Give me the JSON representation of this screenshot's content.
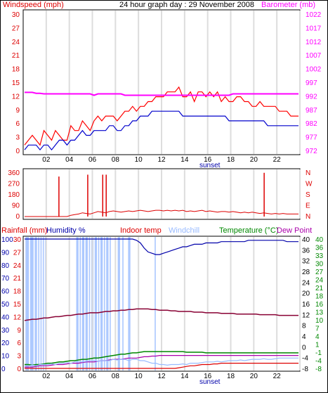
{
  "header": {
    "windspeed_label": "Windspeed (mph)",
    "title": "24 hour graph day : 29 November 2008",
    "barometer_label": "Barometer (mb)"
  },
  "middle_header": {
    "rainfall_label": "Rainfall (mm)",
    "humidity_label": "Humidity %",
    "indoor_label": "Indoor temp",
    "windchill_label": "Windchill",
    "temperature_label": "Temperature (°C)",
    "dewpoint_label": "Dew Point"
  },
  "sunset_label": "sunset",
  "colors": {
    "wind_max": "#ff0000",
    "wind_avg": "#0000cc",
    "barometer": "#ff00ff",
    "direction": "#dd0000",
    "humidity": "#0000aa",
    "indoor": "#880033",
    "windchill": "#99bbff",
    "temperature": "#008800",
    "dewpoint": "#aa00aa",
    "rain": "#dd0000",
    "day_band": "#dddddd"
  },
  "chart_data": [
    {
      "type": "line",
      "x_ticks": [
        "02",
        "04",
        "06",
        "08",
        "10",
        "12",
        "14",
        "16",
        "18",
        "20",
        "22",
        ""
      ],
      "left_ticks": [
        "30",
        "27",
        "24",
        "21",
        "18",
        "15",
        "12",
        "9",
        "6",
        "3",
        "0"
      ],
      "right_ticks": [
        "1022",
        "1017",
        "1012",
        "1007",
        "1002",
        "997",
        "992",
        "987",
        "982",
        "977",
        "972"
      ],
      "ylim": [
        0,
        30
      ],
      "y2lim": [
        972,
        1022
      ],
      "series": [
        {
          "name": "",
          "axis": "left",
          "values": [
            2,
            3,
            4,
            3,
            2,
            5,
            4,
            3,
            5,
            4,
            3,
            3,
            6,
            5,
            5,
            7,
            6,
            5,
            7,
            8,
            7,
            8,
            8,
            8,
            7,
            8,
            9,
            9,
            10,
            9,
            10,
            10,
            11,
            11,
            12,
            12,
            12,
            13,
            13,
            13,
            14,
            12,
            12,
            13,
            11,
            13,
            13,
            12,
            13,
            12,
            13,
            11,
            12,
            11,
            11,
            12,
            12,
            11,
            11,
            10,
            10,
            11,
            10,
            10,
            10,
            10,
            9,
            9,
            9,
            8,
            8,
            8
          ]
        },
        {
          "name": "",
          "axis": "left",
          "values": [
            1,
            2,
            2,
            2,
            1,
            2,
            2,
            1,
            2,
            3,
            3,
            2,
            3,
            3,
            4,
            5,
            4,
            4,
            5,
            5,
            5,
            5,
            6,
            6,
            5,
            5,
            6,
            6,
            7,
            7,
            8,
            8,
            8,
            9,
            9,
            9,
            9,
            9,
            9,
            9,
            9,
            8,
            8,
            8,
            8,
            8,
            8,
            8,
            8,
            8,
            8,
            8,
            8,
            7,
            7,
            7,
            7,
            7,
            7,
            7,
            7,
            7,
            7,
            6,
            6,
            6,
            6,
            6,
            6,
            6,
            6,
            6
          ]
        },
        {
          "name": "",
          "axis": "right",
          "values": [
            993.5,
            993.5,
            993.5,
            993.2,
            993.2,
            993,
            993,
            993,
            993,
            993,
            993,
            993,
            993,
            993,
            993,
            993,
            993,
            993,
            992.5,
            993,
            993,
            993,
            993,
            993,
            993,
            993,
            992.5,
            992.5,
            992.5,
            992.5,
            992.5,
            992.5,
            992.5,
            992.5,
            992.5,
            992.5,
            992.5,
            992.5,
            992.5,
            992.5,
            992.5,
            992.5,
            992.5,
            992.5,
            992.5,
            992.5,
            992.5,
            992.5,
            992.5,
            992.5,
            992.5,
            992.5,
            992.5,
            992.5,
            993,
            993,
            993,
            993,
            993,
            993,
            993,
            993,
            993,
            993,
            993,
            993,
            993,
            993,
            993,
            993,
            993,
            993
          ]
        }
      ]
    },
    {
      "type": "line",
      "left_ticks": [
        "360",
        "270",
        "180",
        "90",
        "0"
      ],
      "right_ticks": [
        "N",
        "W",
        "S",
        "E",
        "N"
      ],
      "ylim": [
        0,
        360
      ],
      "spikes": [
        {
          "x": 3.1,
          "value": 320
        },
        {
          "x": 5.6,
          "value": 335
        },
        {
          "x": 6.9,
          "value": 335
        },
        {
          "x": 7.2,
          "value": 335
        },
        {
          "x": 20.9,
          "value": 350
        }
      ],
      "series": [
        {
          "name": "",
          "values": [
            0,
            0,
            0,
            0,
            0,
            0,
            0,
            0,
            0,
            0,
            0,
            0,
            10,
            15,
            20,
            30,
            25,
            20,
            30,
            40,
            35,
            30,
            40,
            45,
            40,
            35,
            40,
            45,
            40,
            45,
            50,
            45,
            40,
            45,
            50,
            50,
            45,
            50,
            45,
            50,
            45,
            50,
            40,
            45,
            40,
            45,
            50,
            40,
            45,
            40,
            35,
            40,
            40,
            35,
            40,
            35,
            30,
            35,
            30,
            35,
            30,
            25,
            30,
            25,
            20,
            25,
            20,
            25,
            20,
            20,
            20,
            20
          ]
        }
      ]
    },
    {
      "type": "line",
      "left_ticks": [
        "100",
        "90",
        "80",
        "70",
        "60",
        "50",
        "40",
        "30",
        "20",
        "10",
        "0"
      ],
      "left2_ticks": [
        "30",
        "27",
        "24",
        "21",
        "18",
        "15",
        "12",
        "9",
        "6",
        "3",
        "0"
      ],
      "right_ticks": [
        "40",
        "36",
        "32",
        "28",
        "24",
        "20",
        "16",
        "12",
        "8",
        "4",
        "0",
        "-4",
        "-8"
      ],
      "right2_ticks": [
        "40",
        "36",
        "33",
        "30",
        "27",
        "24",
        "21",
        "18",
        "16",
        "13",
        "10",
        "7",
        "4",
        "1",
        "-1",
        "-4",
        "-8"
      ],
      "ylim": [
        0,
        100
      ],
      "series": [
        {
          "name": "",
          "values": [
            100,
            100,
            100,
            100,
            100,
            100,
            100,
            100,
            100,
            100,
            100,
            100,
            100,
            100,
            100,
            100,
            100,
            100,
            100,
            100,
            100,
            100,
            100,
            100,
            100,
            100,
            100,
            100,
            100,
            99,
            97,
            93,
            90,
            89,
            88,
            88,
            89,
            90,
            91,
            92,
            93,
            94,
            94,
            95,
            96,
            96,
            96,
            97,
            97,
            97,
            97,
            98,
            98,
            98,
            98,
            98,
            98,
            98,
            99,
            99,
            99,
            99,
            99,
            99,
            99,
            99,
            99,
            99,
            98,
            98,
            98,
            98
          ]
        },
        {
          "name": "",
          "values": [
            37,
            37.5,
            38,
            38,
            38.5,
            39,
            39,
            39.5,
            40,
            40,
            40.5,
            41,
            41,
            41.5,
            42,
            42,
            42.5,
            43,
            43,
            43,
            43.5,
            44,
            44,
            44.5,
            44.5,
            45,
            45,
            45.5,
            45.5,
            46,
            46,
            46,
            46,
            45.5,
            45.5,
            45,
            45,
            45,
            44.5,
            44.5,
            44,
            44,
            44,
            44,
            43.5,
            43.5,
            43.5,
            43,
            43,
            43,
            43,
            42.5,
            42.5,
            42.5,
            42.5,
            42,
            42,
            42,
            42,
            42,
            42,
            41.5,
            41.5,
            41.5,
            41.5,
            41.5,
            41,
            41,
            41,
            41,
            41,
            41
          ]
        },
        {
          "name": "",
          "values": [
            3,
            3,
            2.5,
            3,
            3,
            3.5,
            4,
            4,
            4.5,
            5,
            5,
            5.5,
            6,
            6,
            6.5,
            7,
            7,
            7.5,
            8,
            8,
            8.5,
            9,
            9.5,
            10,
            10.5,
            11,
            11,
            11.5,
            12,
            12,
            12.5,
            13,
            13,
            13,
            13,
            13,
            13,
            13,
            13,
            13,
            13,
            13,
            12.5,
            12.5,
            12.5,
            12.5,
            12.5,
            12,
            12,
            12,
            12,
            12,
            12,
            12,
            12,
            12,
            12,
            12,
            12,
            12,
            12,
            12,
            12,
            12,
            12,
            12,
            12,
            12,
            12,
            12,
            12,
            12
          ]
        },
        {
          "name": "",
          "values": [
            1,
            1,
            1,
            1.5,
            2,
            2,
            2,
            2.5,
            3,
            3,
            3,
            3.5,
            4,
            4,
            4,
            4.5,
            5,
            5,
            5,
            5.5,
            6,
            6,
            6.5,
            7,
            7,
            7,
            7.5,
            8,
            8,
            8,
            8.5,
            9,
            9,
            9.5,
            9.5,
            10,
            10,
            10,
            10,
            10,
            10,
            10,
            10,
            10,
            10,
            10,
            10,
            10,
            10,
            10,
            10,
            10,
            10,
            10,
            10,
            10,
            10,
            10,
            10,
            10,
            10,
            10,
            10,
            10,
            10,
            10,
            10,
            10,
            10,
            10,
            10,
            10
          ]
        },
        {
          "name": "",
          "values": [
            2,
            2,
            2.5,
            2,
            3,
            3,
            3,
            3.5,
            3,
            4,
            4,
            4.5,
            4,
            5,
            5,
            5,
            5.5,
            6,
            6,
            5.5,
            6,
            6,
            6,
            7,
            6.5,
            7,
            7,
            6,
            7,
            7,
            6,
            6,
            5,
            4,
            4,
            3,
            3,
            2.5,
            3,
            3,
            3,
            3.5,
            3,
            4,
            4,
            4,
            4.5,
            5,
            5,
            5,
            5.5,
            5,
            5.5,
            6,
            6,
            6,
            6.5,
            6,
            6.5,
            7,
            7,
            7,
            7.5,
            7,
            7,
            7.5,
            8,
            8,
            8,
            8,
            8,
            8
          ]
        },
        {
          "name": "",
          "values": [
            0,
            0,
            0,
            0,
            0,
            0,
            0,
            0,
            0,
            0,
            0,
            0,
            0,
            0,
            0,
            0,
            0,
            0,
            0,
            0,
            0,
            0,
            0,
            0,
            0,
            0,
            0,
            0,
            0,
            0,
            0,
            0,
            0,
            0,
            0,
            0,
            0,
            0,
            0,
            0,
            0.5,
            1,
            1.5,
            2,
            2,
            2.5,
            3,
            3,
            3,
            3.5,
            3.5,
            4,
            4,
            4,
            4,
            4,
            4,
            4,
            4,
            4,
            4,
            4,
            4,
            4,
            4,
            4,
            4,
            4,
            4,
            4,
            4,
            4
          ]
        }
      ]
    }
  ]
}
